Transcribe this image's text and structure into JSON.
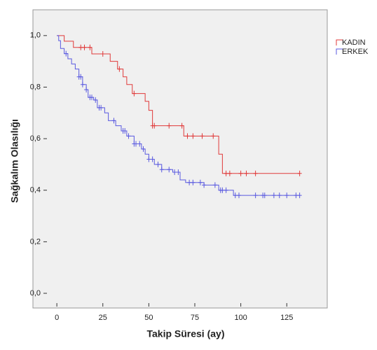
{
  "chart_data": {
    "type": "km",
    "x_label": "Takip Süresi (ay)",
    "y_label": "Sağkalım Olasılığı",
    "xlim": [
      -13,
      147
    ],
    "xticks": [
      0,
      25,
      50,
      75,
      100,
      125
    ],
    "ylim": [
      -0.057,
      1.1
    ],
    "yticks": [
      {
        "value": 0,
        "label": "0,0"
      },
      {
        "value": 0.2,
        "label": "0,2"
      },
      {
        "value": 0.4,
        "label": "0,4"
      },
      {
        "value": 0.6,
        "label": "0,6"
      },
      {
        "value": 0.8,
        "label": "0,8"
      },
      {
        "value": 1,
        "label": "1,0"
      }
    ],
    "series": [
      {
        "name": "KADIN",
        "color": "#e03a3a",
        "x": [
          0,
          4,
          9,
          19,
          29,
          33,
          36,
          38,
          41,
          48,
          50,
          52,
          69,
          88,
          90,
          132
        ],
        "values": [
          1.0,
          0.978,
          0.954,
          0.929,
          0.9,
          0.87,
          0.84,
          0.81,
          0.775,
          0.745,
          0.71,
          0.65,
          0.61,
          0.54,
          0.465,
          0.465
        ],
        "censored": {
          "x": [
            13,
            15,
            18,
            25,
            34,
            42,
            52,
            53,
            61,
            68,
            71,
            74,
            79,
            85,
            92,
            94,
            100,
            103,
            108,
            132
          ],
          "values": [
            0.954,
            0.954,
            0.954,
            0.929,
            0.87,
            0.775,
            0.65,
            0.65,
            0.65,
            0.65,
            0.61,
            0.61,
            0.61,
            0.61,
            0.465,
            0.465,
            0.465,
            0.465,
            0.465,
            0.465
          ]
        }
      },
      {
        "name": "ERKEK",
        "color": "#5a5ae0",
        "x": [
          0,
          1,
          2,
          4,
          6,
          8,
          10,
          12,
          14,
          16,
          17,
          20,
          22,
          26,
          28,
          32,
          35,
          38,
          42,
          46,
          48,
          50,
          53,
          57,
          63,
          67,
          70,
          80,
          88,
          96,
          132
        ],
        "values": [
          1.0,
          0.98,
          0.95,
          0.93,
          0.91,
          0.89,
          0.87,
          0.84,
          0.81,
          0.79,
          0.76,
          0.75,
          0.72,
          0.7,
          0.67,
          0.65,
          0.63,
          0.61,
          0.58,
          0.56,
          0.54,
          0.52,
          0.5,
          0.48,
          0.47,
          0.44,
          0.43,
          0.42,
          0.4,
          0.38,
          0.38
        ],
        "censored": {
          "x": [
            5,
            12,
            13,
            14,
            16,
            18,
            19,
            21,
            23,
            24,
            31,
            36,
            37,
            39,
            42,
            43,
            45,
            47,
            50,
            52,
            55,
            57,
            61,
            64,
            66,
            72,
            74,
            78,
            80,
            86,
            89,
            90,
            92,
            97,
            99,
            108,
            112,
            113,
            118,
            121,
            125,
            130,
            132
          ],
          "values": [
            0.93,
            0.84,
            0.84,
            0.81,
            0.79,
            0.76,
            0.76,
            0.75,
            0.72,
            0.72,
            0.67,
            0.63,
            0.63,
            0.61,
            0.58,
            0.58,
            0.58,
            0.56,
            0.52,
            0.52,
            0.5,
            0.48,
            0.48,
            0.47,
            0.47,
            0.43,
            0.43,
            0.43,
            0.42,
            0.42,
            0.4,
            0.4,
            0.4,
            0.38,
            0.38,
            0.38,
            0.38,
            0.38,
            0.38,
            0.38,
            0.38,
            0.38,
            0.38
          ]
        }
      }
    ]
  }
}
